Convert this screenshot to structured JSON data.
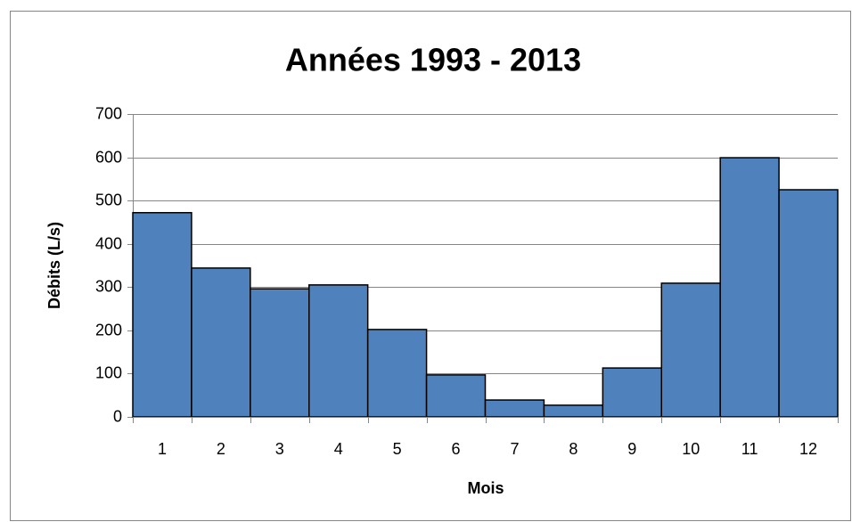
{
  "chart_data": {
    "type": "bar",
    "title": "Années 1993 - 2013",
    "x_label": "Mois",
    "y_label": "Débits (L/s)",
    "categories": [
      "1",
      "2",
      "3",
      "4",
      "5",
      "6",
      "7",
      "8",
      "9",
      "10",
      "11",
      "12"
    ],
    "values": [
      472,
      344,
      296,
      305,
      202,
      97,
      39,
      27,
      113,
      309,
      599,
      525
    ],
    "color": "#4f81bd",
    "ylim": [
      0,
      700
    ],
    "yticks": [
      0,
      100,
      200,
      300,
      400,
      500,
      600,
      700
    ],
    "grid": true
  }
}
